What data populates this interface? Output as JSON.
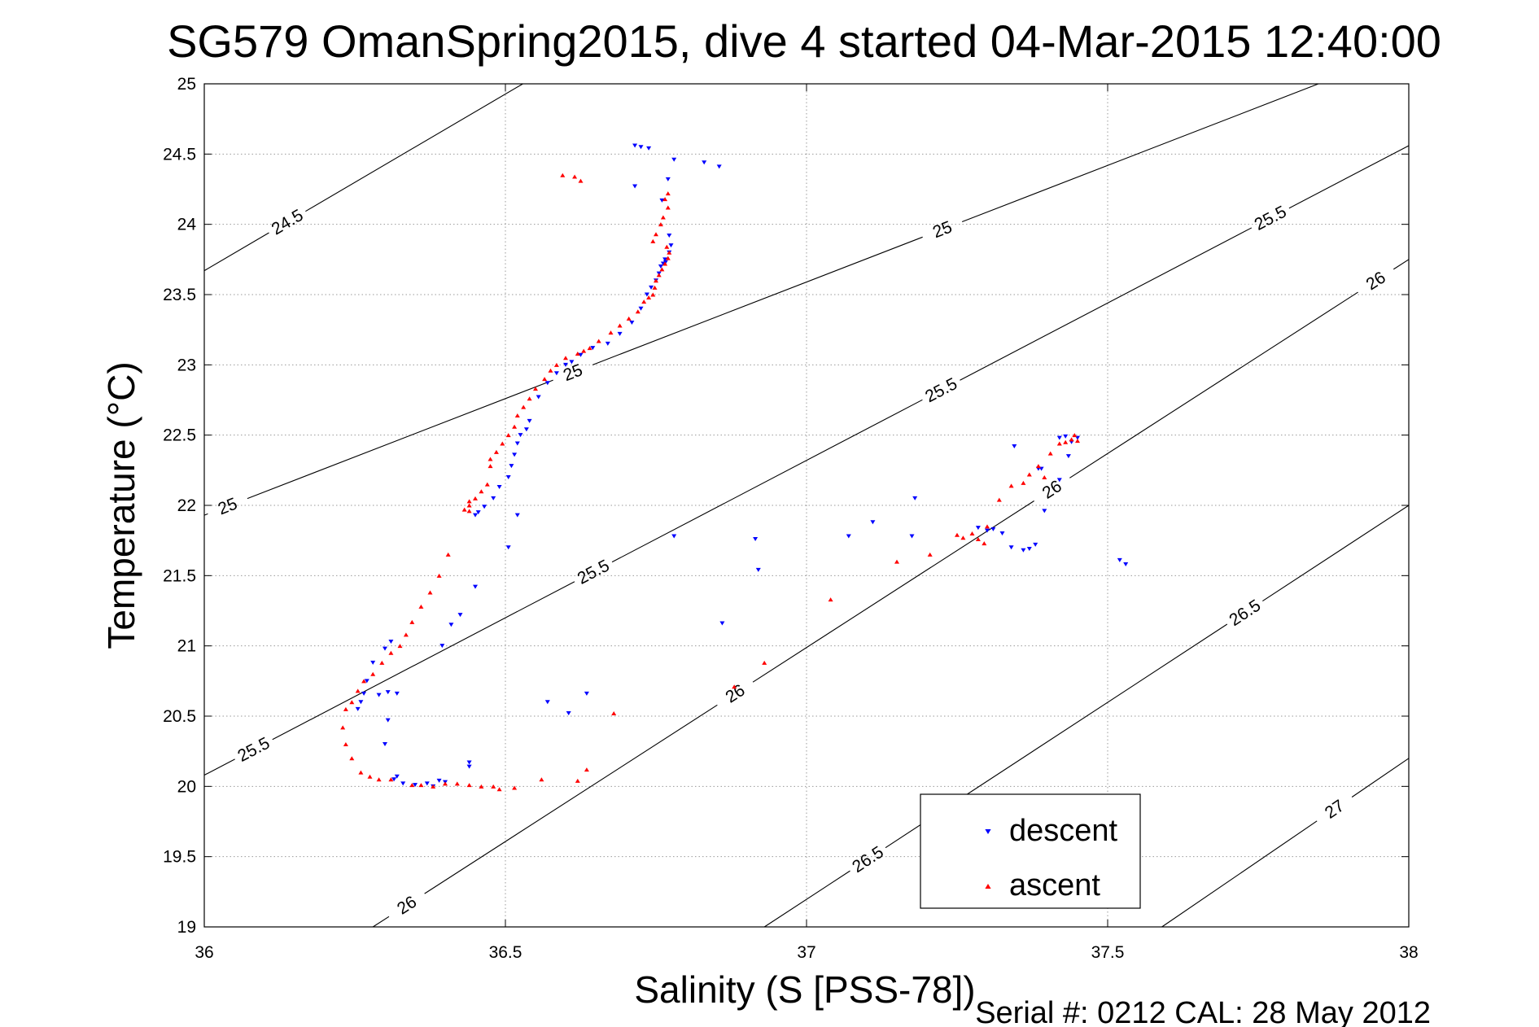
{
  "chart_data": {
    "type": "scatter",
    "title": "SG579 OmanSpring2015, dive 4 started 04-Mar-2015 12:40:00",
    "xlabel": "Salinity (S [PSS-78])",
    "ylabel": "Temperature (°C)",
    "xlim": [
      36,
      38
    ],
    "ylim": [
      19,
      25
    ],
    "x_ticks": [
      "36",
      "36.5",
      "37",
      "37.5",
      "38"
    ],
    "y_ticks": [
      "19",
      "19.5",
      "20",
      "20.5",
      "21",
      "21.5",
      "22",
      "22.5",
      "23",
      "23.5",
      "24",
      "24.5",
      "25"
    ],
    "grid": true,
    "legend_position": "bottom-right",
    "footer": "Serial #: 0212  CAL: 28 May 2012",
    "contours": [
      {
        "label": "24.5",
        "color": "#000000",
        "points": [
          [
            36.0,
            23.67
          ],
          [
            36.529,
            25.0
          ]
        ],
        "label_positions": [
          [
            36.14,
            24.0
          ]
        ]
      },
      {
        "label": "25",
        "color": "#000000",
        "points": [
          [
            36.0,
            21.93
          ],
          [
            37.85,
            25.0
          ]
        ],
        "label_positions": [
          [
            36.04,
            21.98
          ],
          [
            36.58,
            23.3
          ],
          [
            37.15,
            24.8
          ]
        ]
      },
      {
        "label": "25.5",
        "color": "#000000",
        "points": [
          [
            36.0,
            20.08
          ],
          [
            38.0,
            24.56
          ]
        ],
        "label_positions": [
          [
            36.08,
            20.28
          ],
          [
            36.62,
            21.74
          ],
          [
            37.17,
            23.26
          ],
          [
            37.7,
            24.62
          ]
        ]
      },
      {
        "label": "26",
        "color": "#000000",
        "points": [
          [
            36.28,
            19.0
          ],
          [
            38.0,
            23.75
          ]
        ],
        "label_positions": [
          [
            36.34,
            19.13
          ],
          [
            36.88,
            20.67
          ],
          [
            37.42,
            22.03
          ],
          [
            37.96,
            23.5
          ]
        ]
      },
      {
        "label": "26.5",
        "color": "#000000",
        "points": [
          [
            36.93,
            19.0
          ],
          [
            38.0,
            22.0
          ]
        ],
        "label_positions": [
          [
            37.05,
            19.82
          ],
          [
            37.68,
            21.55
          ]
        ]
      },
      {
        "label": "27",
        "color": "#000000",
        "points": [
          [
            37.59,
            19.0
          ],
          [
            38.0,
            20.2
          ]
        ],
        "label_positions": [
          [
            37.87,
            19.88
          ]
        ]
      }
    ],
    "series": [
      {
        "name": "descent",
        "color": "#0000ff",
        "marker": "triangle-down",
        "points": [
          [
            36.715,
            24.56
          ],
          [
            36.725,
            24.55
          ],
          [
            36.738,
            24.54
          ],
          [
            36.78,
            24.46
          ],
          [
            36.83,
            24.44
          ],
          [
            36.855,
            24.41
          ],
          [
            36.77,
            24.32
          ],
          [
            36.715,
            24.27
          ],
          [
            36.76,
            24.17
          ],
          [
            36.772,
            23.92
          ],
          [
            36.775,
            23.85
          ],
          [
            36.772,
            23.8
          ],
          [
            36.765,
            23.75
          ],
          [
            36.762,
            23.72
          ],
          [
            36.758,
            23.7
          ],
          [
            36.766,
            23.73
          ],
          [
            36.755,
            23.65
          ],
          [
            36.75,
            23.6
          ],
          [
            36.742,
            23.55
          ],
          [
            36.735,
            23.5
          ],
          [
            36.725,
            23.4
          ],
          [
            36.71,
            23.3
          ],
          [
            36.69,
            23.22
          ],
          [
            36.67,
            23.15
          ],
          [
            36.645,
            23.12
          ],
          [
            36.625,
            23.07
          ],
          [
            36.61,
            23.02
          ],
          [
            36.6,
            23.0
          ],
          [
            36.585,
            22.94
          ],
          [
            36.57,
            22.87
          ],
          [
            36.555,
            22.77
          ],
          [
            36.54,
            22.6
          ],
          [
            36.535,
            22.54
          ],
          [
            36.525,
            22.5
          ],
          [
            36.52,
            22.44
          ],
          [
            36.515,
            22.36
          ],
          [
            36.51,
            22.28
          ],
          [
            36.505,
            22.2
          ],
          [
            36.49,
            22.13
          ],
          [
            36.48,
            22.05
          ],
          [
            36.465,
            21.99
          ],
          [
            36.455,
            21.95
          ],
          [
            36.45,
            21.93
          ],
          [
            36.52,
            21.93
          ],
          [
            36.505,
            21.7
          ],
          [
            36.45,
            21.42
          ],
          [
            36.425,
            21.22
          ],
          [
            36.41,
            21.15
          ],
          [
            36.395,
            21.0
          ],
          [
            36.31,
            21.03
          ],
          [
            36.3,
            20.98
          ],
          [
            36.28,
            20.88
          ],
          [
            36.27,
            20.75
          ],
          [
            36.265,
            20.66
          ],
          [
            36.26,
            20.6
          ],
          [
            36.255,
            20.55
          ],
          [
            36.29,
            20.65
          ],
          [
            36.305,
            20.67
          ],
          [
            36.32,
            20.66
          ],
          [
            36.305,
            20.47
          ],
          [
            36.3,
            20.3
          ],
          [
            36.32,
            20.07
          ],
          [
            36.315,
            20.05
          ],
          [
            36.33,
            20.02
          ],
          [
            36.35,
            20.01
          ],
          [
            36.37,
            20.02
          ],
          [
            36.38,
            20.0
          ],
          [
            36.39,
            20.04
          ],
          [
            36.4,
            20.03
          ],
          [
            36.44,
            20.17
          ],
          [
            36.44,
            20.14
          ],
          [
            36.57,
            20.6
          ],
          [
            36.605,
            20.52
          ],
          [
            36.635,
            20.66
          ],
          [
            36.78,
            21.78
          ],
          [
            36.86,
            21.16
          ],
          [
            36.915,
            21.76
          ],
          [
            36.92,
            21.54
          ],
          [
            37.07,
            21.78
          ],
          [
            37.11,
            21.88
          ],
          [
            37.175,
            21.78
          ],
          [
            37.18,
            22.05
          ],
          [
            37.285,
            21.84
          ],
          [
            37.3,
            21.82
          ],
          [
            37.31,
            21.83
          ],
          [
            37.325,
            21.8
          ],
          [
            37.34,
            21.7
          ],
          [
            37.36,
            21.68
          ],
          [
            37.37,
            21.69
          ],
          [
            37.38,
            21.72
          ],
          [
            37.345,
            22.42
          ],
          [
            37.385,
            22.26
          ],
          [
            37.39,
            22.26
          ],
          [
            37.395,
            21.96
          ],
          [
            37.42,
            22.48
          ],
          [
            37.43,
            22.49
          ],
          [
            37.44,
            22.45
          ],
          [
            37.45,
            22.48
          ],
          [
            37.435,
            22.35
          ],
          [
            37.42,
            22.18
          ],
          [
            37.52,
            21.61
          ],
          [
            37.53,
            21.58
          ]
        ]
      },
      {
        "name": "ascent",
        "color": "#ff0000",
        "marker": "triangle-up",
        "points": [
          [
            36.77,
            24.22
          ],
          [
            36.765,
            24.18
          ],
          [
            36.77,
            24.12
          ],
          [
            36.762,
            24.05
          ],
          [
            36.758,
            24.0
          ],
          [
            36.75,
            23.93
          ],
          [
            36.745,
            23.88
          ],
          [
            36.768,
            23.84
          ],
          [
            36.772,
            23.8
          ],
          [
            36.77,
            23.76
          ],
          [
            36.765,
            23.72
          ],
          [
            36.76,
            23.68
          ],
          [
            36.755,
            23.64
          ],
          [
            36.75,
            23.6
          ],
          [
            36.748,
            23.55
          ],
          [
            36.745,
            23.5
          ],
          [
            36.738,
            23.48
          ],
          [
            36.73,
            23.45
          ],
          [
            36.72,
            23.38
          ],
          [
            36.705,
            23.33
          ],
          [
            36.69,
            23.28
          ],
          [
            36.675,
            23.23
          ],
          [
            36.655,
            23.17
          ],
          [
            36.64,
            23.12
          ],
          [
            36.63,
            23.1
          ],
          [
            36.62,
            23.08
          ],
          [
            36.6,
            23.05
          ],
          [
            36.585,
            23.0
          ],
          [
            36.575,
            22.96
          ],
          [
            36.565,
            22.9
          ],
          [
            36.55,
            22.83
          ],
          [
            36.54,
            22.76
          ],
          [
            36.53,
            22.7
          ],
          [
            36.52,
            22.64
          ],
          [
            36.515,
            22.56
          ],
          [
            36.505,
            22.5
          ],
          [
            36.495,
            22.44
          ],
          [
            36.485,
            22.38
          ],
          [
            36.475,
            22.33
          ],
          [
            36.475,
            22.28
          ],
          [
            36.47,
            22.15
          ],
          [
            36.46,
            22.1
          ],
          [
            36.45,
            22.05
          ],
          [
            36.44,
            22.03
          ],
          [
            36.44,
            22.0
          ],
          [
            36.432,
            21.97
          ],
          [
            36.44,
            21.96
          ],
          [
            36.405,
            21.65
          ],
          [
            36.39,
            21.5
          ],
          [
            36.375,
            21.38
          ],
          [
            36.36,
            21.28
          ],
          [
            36.345,
            21.17
          ],
          [
            36.335,
            21.08
          ],
          [
            36.325,
            21.0
          ],
          [
            36.31,
            20.95
          ],
          [
            36.295,
            20.88
          ],
          [
            36.28,
            20.8
          ],
          [
            36.265,
            20.75
          ],
          [
            36.255,
            20.68
          ],
          [
            36.245,
            20.6
          ],
          [
            36.235,
            20.55
          ],
          [
            36.23,
            20.42
          ],
          [
            36.235,
            20.3
          ],
          [
            36.245,
            20.2
          ],
          [
            36.26,
            20.1
          ],
          [
            36.275,
            20.07
          ],
          [
            36.29,
            20.05
          ],
          [
            36.31,
            20.05
          ],
          [
            36.345,
            20.01
          ],
          [
            36.36,
            20.01
          ],
          [
            36.38,
            20.0
          ],
          [
            36.4,
            20.02
          ],
          [
            36.42,
            20.02
          ],
          [
            36.44,
            20.01
          ],
          [
            36.46,
            20.0
          ],
          [
            36.48,
            20.0
          ],
          [
            36.49,
            19.98
          ],
          [
            36.515,
            19.99
          ],
          [
            36.56,
            20.05
          ],
          [
            36.62,
            20.04
          ],
          [
            36.635,
            20.12
          ],
          [
            36.595,
            24.35
          ],
          [
            36.615,
            24.34
          ],
          [
            36.625,
            24.31
          ],
          [
            36.68,
            20.52
          ],
          [
            36.88,
            20.71
          ],
          [
            36.93,
            20.88
          ],
          [
            37.04,
            21.33
          ],
          [
            37.15,
            21.6
          ],
          [
            37.205,
            21.65
          ],
          [
            37.25,
            21.79
          ],
          [
            37.26,
            21.77
          ],
          [
            37.275,
            21.8
          ],
          [
            37.285,
            21.76
          ],
          [
            37.295,
            21.73
          ],
          [
            37.3,
            21.85
          ],
          [
            37.32,
            22.04
          ],
          [
            37.34,
            22.14
          ],
          [
            37.36,
            22.16
          ],
          [
            37.37,
            22.22
          ],
          [
            37.385,
            22.28
          ],
          [
            37.395,
            22.2
          ],
          [
            37.405,
            22.37
          ],
          [
            37.42,
            22.44
          ],
          [
            37.43,
            22.45
          ],
          [
            37.44,
            22.47
          ],
          [
            37.45,
            22.46
          ],
          [
            37.445,
            22.5
          ]
        ]
      }
    ]
  }
}
